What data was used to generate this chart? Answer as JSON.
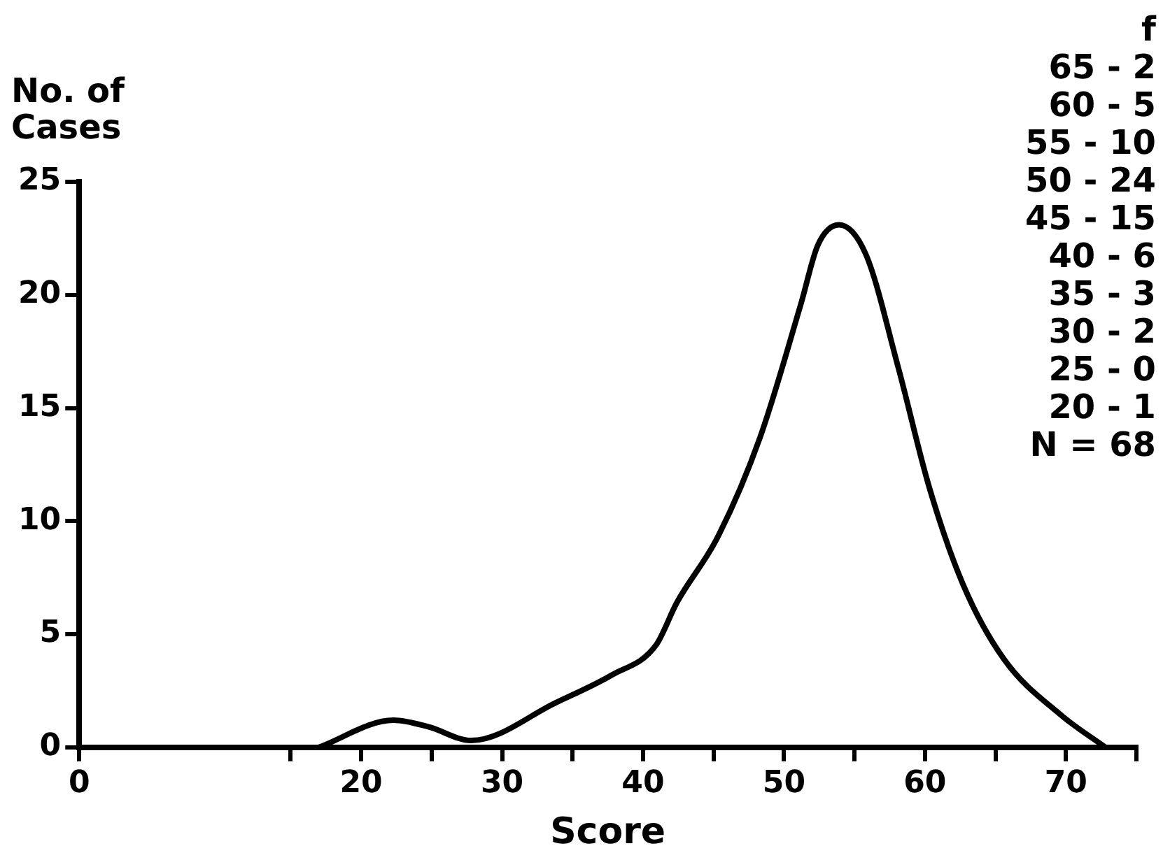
{
  "chart_data": {
    "type": "line",
    "xlabel": "Score",
    "ylabel": "No. of Cases",
    "x": [
      17.0,
      22.3,
      24.8,
      27.8,
      33.9,
      37.8,
      40.9,
      42.4,
      45.3,
      48.3,
      51.2,
      52.4,
      53.9,
      55.8,
      58.1,
      60.3,
      62.7,
      65.6,
      69.7,
      72.8
    ],
    "series": [
      {
        "color": "#000000",
        "values": [
          0,
          1.2,
          0.9,
          0.3,
          2.0,
          3.2,
          4.5,
          6.4,
          9.3,
          13.7,
          19.6,
          22.2,
          23.1,
          21.8,
          16.8,
          11.5,
          7.2,
          3.9,
          1.4,
          0
        ]
      }
    ],
    "xlim": [
      0,
      75
    ],
    "xticks": [
      0,
      {
        "value": 15,
        "label": null
      },
      20,
      {
        "value": 25,
        "label": null
      },
      30,
      {
        "value": 35,
        "label": null
      },
      40,
      {
        "value": 45,
        "label": null
      },
      50,
      {
        "value": 55,
        "label": null
      },
      60,
      {
        "value": 65,
        "label": null
      },
      70,
      {
        "value": 75,
        "label": null
      }
    ],
    "ylim": [
      0,
      25
    ],
    "yticks": [
      0,
      5,
      10,
      15,
      20,
      25
    ],
    "grid": false,
    "legend": false,
    "marker": "none",
    "line_style": "solid",
    "annotations": [
      "f",
      "65 - 2",
      "60 - 5",
      "55 - 10",
      "50 - 24",
      "45 - 15",
      "40 - 6",
      "35 - 3",
      "30 - 2",
      "25 - 0",
      "20 - 1",
      "N = 68"
    ]
  }
}
